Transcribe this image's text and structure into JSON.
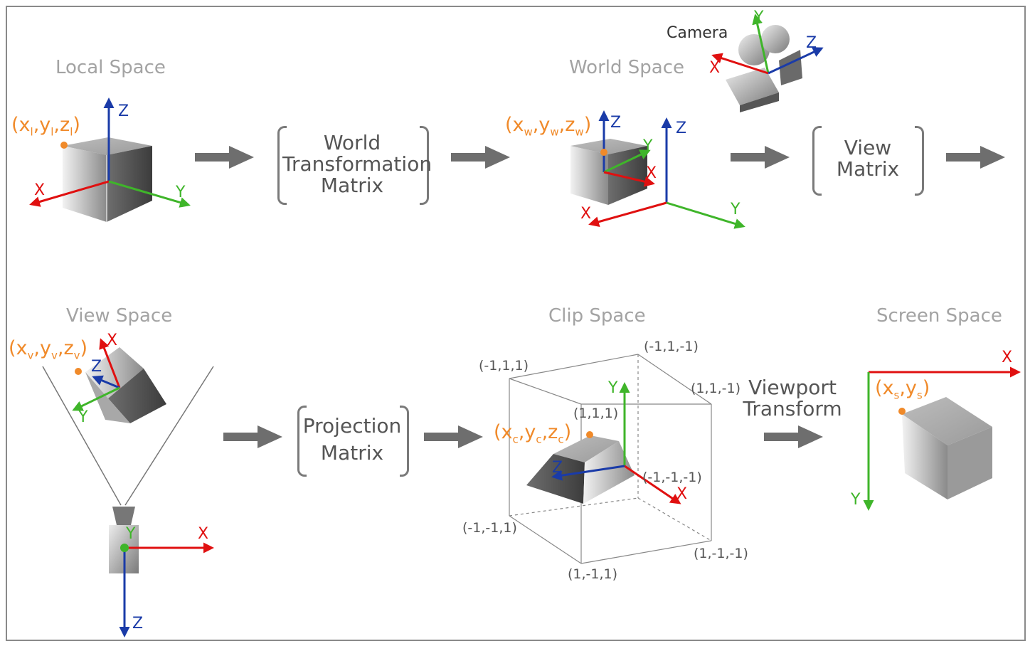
{
  "titles": {
    "local": "Local Space",
    "world": "World Space",
    "view": "View Space",
    "clip": "Clip Space",
    "screen": "Screen Space"
  },
  "camera_label": "Camera",
  "matrices": {
    "world": [
      "World",
      "Transformation",
      "Matrix"
    ],
    "view": [
      "View",
      "Matrix"
    ],
    "projection": [
      "Projection",
      "Matrix"
    ],
    "viewport": [
      "Viewport",
      "Transform"
    ]
  },
  "points": {
    "local": {
      "open": "(x",
      "a": "l",
      "s1": ",y",
      "b": "l",
      "s2": ",z",
      "c": "l",
      "close": ")"
    },
    "world": {
      "open": "(x",
      "a": "w",
      "s1": ",y",
      "b": "w",
      "s2": ",z",
      "c": "w",
      "close": ")"
    },
    "view": {
      "open": "(x",
      "a": "v",
      "s1": ",y",
      "b": "v",
      "s2": ",z",
      "c": "v",
      "close": ")"
    },
    "clip": {
      "open": "(x",
      "a": "c",
      "s1": ",y",
      "b": "c",
      "s2": ",z",
      "c": "c",
      "close": ")"
    },
    "screen": {
      "open": "(x",
      "a": "s",
      "s1": ",y",
      "b": "s",
      "close": ")"
    }
  },
  "axes": {
    "x": "X",
    "y": "Y",
    "z": "Z"
  },
  "clip_corners": {
    "c1": "(-1,1,-1)",
    "c2": "(-1,1,1)",
    "c3": "(1,1,-1)",
    "c4": "(1,1,1)",
    "c5": "(-1,-1,-1)",
    "c6": "(-1,-1,1)",
    "c7": "(1,-1,-1)",
    "c8": "(1,-1,1)"
  },
  "colors": {
    "x_axis": "#e01010",
    "y_axis": "#3fb52a",
    "z_axis": "#1a3ba8",
    "point": "#f08a2a",
    "arrow": "#6e6e6e",
    "title": "#a3a3a3"
  }
}
